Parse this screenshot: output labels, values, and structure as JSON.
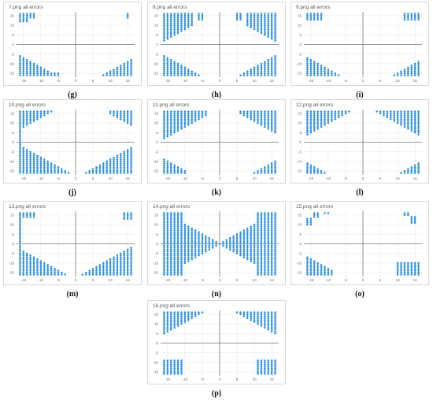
{
  "colors": {
    "points": "#2a8ee8",
    "grid": "#e6e6e6",
    "axis": "#7a7a7a",
    "border": "#d8d8d8"
  },
  "chart_data": [
    {
      "type": "scatter",
      "title": "7.png all errors",
      "caption": "(g)",
      "xlim": [
        -17,
        17
      ],
      "ylim": [
        -17,
        17
      ],
      "xticks": [
        -15,
        -10,
        -5,
        0,
        5,
        10,
        15
      ],
      "yticks": [
        15,
        10,
        5,
        0,
        -5,
        -10,
        -15
      ],
      "grid": true,
      "blocks": [
        {
          "x0": -16,
          "x1": -14,
          "ylo": "top",
          "yhi": 16,
          "yfloor": 12,
          "kind": "upper"
        },
        {
          "x0": -13,
          "x1": -12,
          "ylo": 14,
          "yhi": 16,
          "kind": "rect"
        },
        {
          "x0": 15,
          "x1": 15,
          "ylo": 14,
          "yhi": 16,
          "kind": "rect"
        },
        {
          "x0": -16,
          "x1": -8,
          "kind": "lowerleft",
          "ytop0": -6,
          "slope": 1,
          "ybot": -16
        },
        {
          "x0": -7,
          "x1": -5,
          "kind": "rect",
          "ylo": -16,
          "yhi": -15
        },
        {
          "x0": 6,
          "x1": 16,
          "kind": "lowerright",
          "ytop1": -8,
          "slope": 1,
          "ybot": -16
        }
      ]
    },
    {
      "type": "scatter",
      "title": "8.png all errors",
      "caption": "(h)",
      "xlim": [
        -17,
        17
      ],
      "ylim": [
        -17,
        17
      ],
      "xticks": [
        -15,
        -10,
        -5,
        0,
        5,
        10,
        15
      ],
      "yticks": [
        15,
        10,
        5,
        0,
        -5,
        -10,
        -15
      ],
      "grid": true,
      "blocks": [
        {
          "x0": -16,
          "x1": -8,
          "kind": "upperleft",
          "ybot0": 2,
          "slope": 1,
          "ytop": 16
        },
        {
          "x0": -6,
          "x1": -5,
          "kind": "rect",
          "ylo": 13,
          "yhi": 16
        },
        {
          "x0": 5,
          "x1": 6,
          "kind": "rect",
          "ylo": 13,
          "yhi": 16
        },
        {
          "x0": 8,
          "x1": 16,
          "kind": "upperright",
          "ybot1": 2,
          "slope": 1,
          "ytop": 16
        },
        {
          "x0": -16,
          "x1": -4,
          "kind": "lowerleft",
          "ytop0": -6,
          "slope": 1,
          "ybot": -16
        },
        {
          "x0": 4,
          "x1": 16,
          "kind": "lowerright",
          "ytop1": -6,
          "slope": 1,
          "ybot": -16
        }
      ]
    },
    {
      "type": "scatter",
      "title": "9.png all errors",
      "caption": "(i)",
      "xlim": [
        -17,
        17
      ],
      "ylim": [
        -17,
        17
      ],
      "xticks": [
        -15,
        -10,
        -5,
        0,
        5,
        10,
        15
      ],
      "yticks": [
        15,
        10,
        5,
        0,
        -5,
        -10,
        -15
      ],
      "grid": true,
      "blocks": [
        {
          "x0": -16,
          "x1": -12,
          "kind": "rect",
          "ylo": 13,
          "yhi": 16
        },
        {
          "x0": 12,
          "x1": 16,
          "kind": "rect",
          "ylo": 13,
          "yhi": 16
        },
        {
          "x0": -16,
          "x1": -6,
          "kind": "lowerleft",
          "ytop0": -7,
          "slope": 1,
          "ybot": -16
        },
        {
          "x0": 8,
          "x1": 16,
          "kind": "lowerright",
          "ytop1": -9,
          "slope": 1,
          "ybot": -16
        }
      ]
    },
    {
      "type": "scatter",
      "title": "10.png all errors",
      "caption": "(j)",
      "xlim": [
        -17,
        17
      ],
      "ylim": [
        -17,
        17
      ],
      "xticks": [
        -15,
        -10,
        -5,
        0,
        5,
        10,
        15
      ],
      "yticks": [
        15,
        10,
        5,
        0,
        -5,
        -10,
        -15
      ],
      "grid": true,
      "blocks": [
        {
          "x0": -16,
          "x1": -16,
          "kind": "rect",
          "ylo": -16,
          "yhi": 16
        },
        {
          "x0": -15,
          "x1": -6,
          "kind": "upperleft",
          "ybot0": 8,
          "slope": 1,
          "ytop": 16
        },
        {
          "x0": 10,
          "x1": 16,
          "kind": "upperright",
          "ybot1": 9,
          "slope": 1,
          "ytop": 16
        },
        {
          "x0": -15,
          "x1": -1,
          "kind": "lowerleft",
          "ytop0": -3,
          "slope": 1,
          "ybot": -16
        },
        {
          "x0": 2,
          "x1": 16,
          "kind": "lowerright",
          "ytop1": -3,
          "slope": 1,
          "ybot": -16
        }
      ]
    },
    {
      "type": "scatter",
      "title": "11.png all errors",
      "caption": "(k)",
      "xlim": [
        -17,
        17
      ],
      "ylim": [
        -17,
        17
      ],
      "xticks": [
        -15,
        -10,
        -5,
        0,
        5,
        10,
        15
      ],
      "yticks": [
        15,
        10,
        5,
        0,
        -5,
        -10,
        -15
      ],
      "grid": true,
      "blocks": [
        {
          "x0": -16,
          "x1": -4,
          "kind": "upperleft",
          "ybot0": 2,
          "slope": 1,
          "ytop": 16
        },
        {
          "x0": 6,
          "x1": 16,
          "kind": "upperright",
          "ybot1": 5,
          "slope": 1,
          "ytop": 16
        },
        {
          "x0": -16,
          "x1": -10,
          "kind": "lowerleft",
          "ytop0": -9,
          "slope": 1,
          "ybot": -16
        },
        {
          "x0": 10,
          "x1": 16,
          "kind": "lowerright",
          "ytop1": -10,
          "slope": 1,
          "ybot": -16
        }
      ]
    },
    {
      "type": "scatter",
      "title": "12.png all errors",
      "caption": "(l)",
      "xlim": [
        -17,
        17
      ],
      "ylim": [
        -17,
        17
      ],
      "xticks": [
        -15,
        -10,
        -5,
        0,
        5,
        10,
        15
      ],
      "yticks": [
        15,
        10,
        5,
        0,
        -5,
        -10,
        -15
      ],
      "grid": true,
      "blocks": [
        {
          "x0": -16,
          "x1": -4,
          "kind": "upperleft",
          "ybot0": 4,
          "slope": 1,
          "ytop": 16
        },
        {
          "x0": 4,
          "x1": 16,
          "kind": "upperright",
          "ybot1": 4,
          "slope": 1,
          "ytop": 16
        },
        {
          "x0": -16,
          "x1": -10,
          "kind": "lowerleft",
          "ytop0": -11,
          "slope": 1,
          "ybot": -16
        },
        {
          "x0": 10,
          "x1": 16,
          "kind": "lowerright",
          "ytop1": -11,
          "slope": 1,
          "ybot": -16
        }
      ]
    },
    {
      "type": "scatter",
      "title": "13.png all errors",
      "caption": "(m)",
      "xlim": [
        -17,
        17
      ],
      "ylim": [
        -17,
        17
      ],
      "xticks": [
        -15,
        -10,
        -5,
        0,
        5,
        10,
        15
      ],
      "yticks": [
        15,
        10,
        5,
        0,
        -5,
        -10,
        -15
      ],
      "grid": true,
      "blocks": [
        {
          "x0": -16,
          "x1": -16,
          "kind": "rect",
          "ylo": -16,
          "yhi": 16
        },
        {
          "x0": -15,
          "x1": -12,
          "kind": "rect",
          "ylo": 14,
          "yhi": 16
        },
        {
          "x0": 14,
          "x1": 16,
          "kind": "rect",
          "ylo": 13,
          "yhi": 16
        },
        {
          "x0": -15,
          "x1": -2,
          "kind": "lowerleft",
          "ytop0": -4,
          "slope": 1,
          "ybot": -16
        },
        {
          "x0": 2,
          "x1": 16,
          "kind": "lowerright",
          "ytop1": -2,
          "slope": 1,
          "ybot": -16
        }
      ]
    },
    {
      "type": "scatter",
      "title": "14.png all errors",
      "caption": "(n)",
      "xlim": [
        -17,
        17
      ],
      "ylim": [
        -17,
        17
      ],
      "xticks": [
        -15,
        -10,
        -5,
        0,
        5,
        10,
        15
      ],
      "yticks": [
        15,
        10,
        5,
        0,
        -5,
        -10,
        -15
      ],
      "grid": true,
      "blocks": [
        {
          "x0": -16,
          "x1": 16,
          "kind": "bowtie",
          "ytop": 16,
          "ybot": -16
        },
        {
          "x0": -16,
          "x1": -11,
          "kind": "rect",
          "ylo": -16,
          "yhi": 16
        },
        {
          "x0": 11,
          "x1": 16,
          "kind": "rect",
          "ylo": -16,
          "yhi": 16
        }
      ]
    },
    {
      "type": "scatter",
      "title": "15.png all errors",
      "caption": "(o)",
      "xlim": [
        -17,
        17
      ],
      "ylim": [
        -17,
        17
      ],
      "xticks": [
        -15,
        -10,
        -5,
        0,
        5,
        10,
        15
      ],
      "yticks": [
        15,
        10,
        5,
        0,
        -5,
        -10,
        -15
      ],
      "grid": true,
      "blocks": [
        {
          "x0": -16,
          "x1": -15,
          "kind": "rect",
          "ylo": 10,
          "yhi": 13
        },
        {
          "x0": -14,
          "x1": -13,
          "kind": "rect",
          "ylo": 14,
          "yhi": 16
        },
        {
          "x0": -11,
          "x1": -10,
          "kind": "rect",
          "ylo": 16,
          "yhi": 16
        },
        {
          "x0": 12,
          "x1": 13,
          "kind": "rect",
          "ylo": 15,
          "yhi": 16
        },
        {
          "x0": 14,
          "x1": 15,
          "kind": "rect",
          "ylo": 11,
          "yhi": 14
        },
        {
          "x0": -16,
          "x1": -9,
          "kind": "lowerleft",
          "ytop0": -7,
          "slope": 1,
          "ybot": -16
        },
        {
          "x0": 10,
          "x1": 16,
          "kind": "rect",
          "ylo": -16,
          "yhi": -10
        }
      ]
    },
    {
      "type": "scatter",
      "title": "16.png all errors",
      "caption": "(p)",
      "xlim": [
        -17,
        17
      ],
      "ylim": [
        -17,
        17
      ],
      "xticks": [
        -15,
        -10,
        -5,
        0,
        5,
        10,
        15
      ],
      "yticks": [
        15,
        10,
        5,
        0,
        -5,
        -10,
        -15
      ],
      "grid": true,
      "blocks": [
        {
          "x0": -16,
          "x1": -5,
          "kind": "upperleft",
          "ybot0": 5,
          "slope": 1,
          "ytop": 16
        },
        {
          "x0": 5,
          "x1": 16,
          "kind": "upperright",
          "ybot1": 5,
          "slope": 1,
          "ytop": 16
        },
        {
          "x0": -16,
          "x1": -11,
          "kind": "rect",
          "ylo": -16,
          "yhi": -9
        },
        {
          "x0": 11,
          "x1": 16,
          "kind": "rect",
          "ylo": -16,
          "yhi": -9
        }
      ]
    }
  ]
}
